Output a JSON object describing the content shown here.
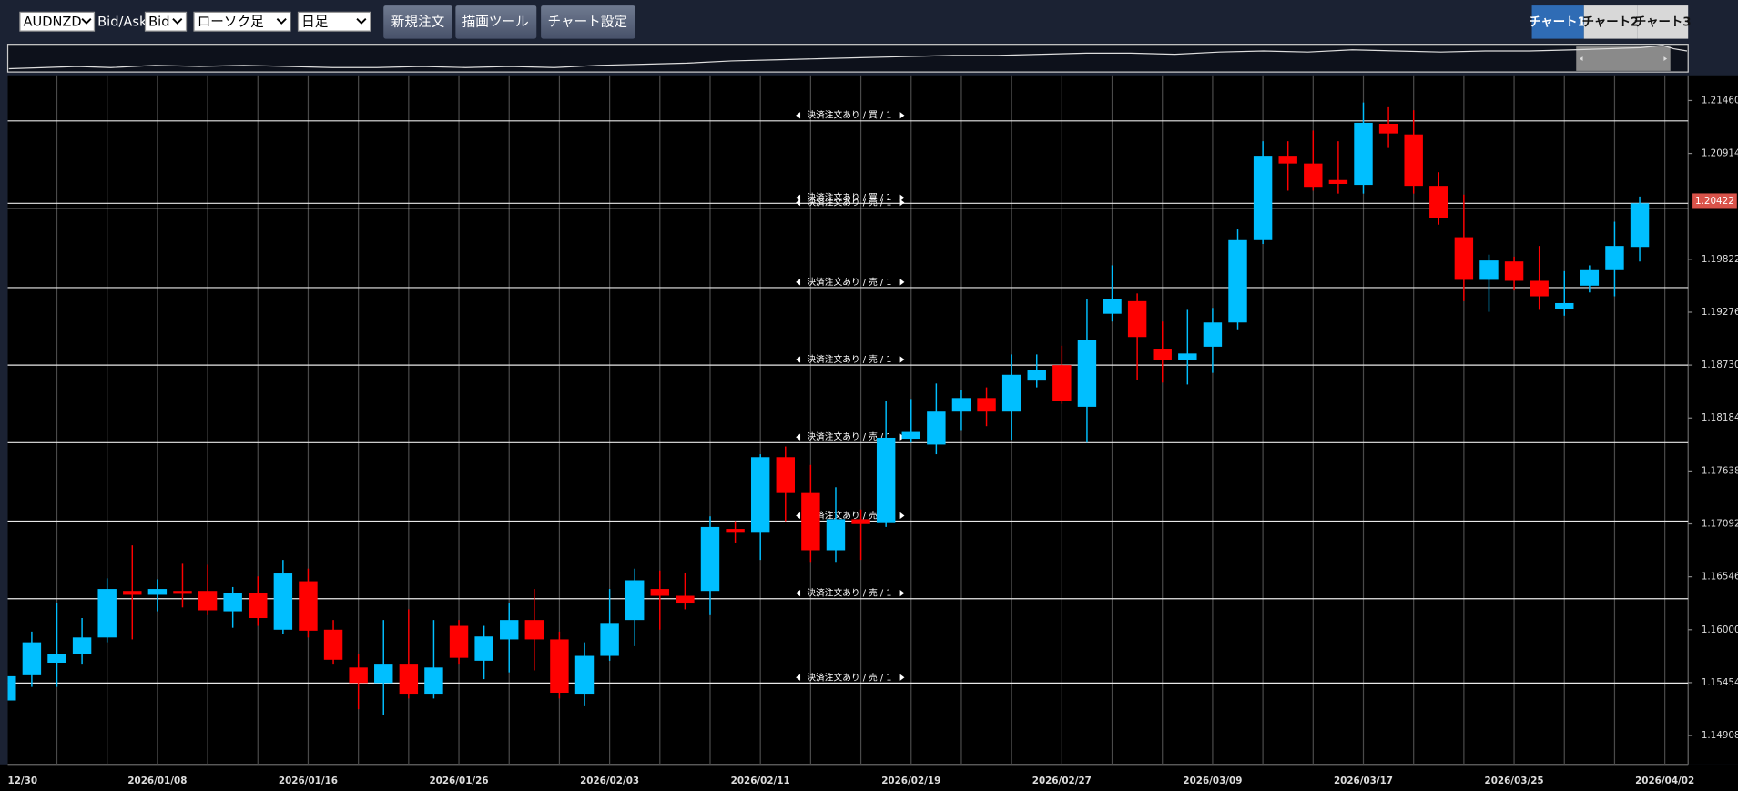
{
  "toolbar": {
    "symbol": "AUDNZD",
    "price_type_label": "Bid/Ask",
    "price_type": "Bid",
    "chart_type": "ローソク足",
    "timeframe": "日足",
    "buttons": [
      "新規注文",
      "描画ツール",
      "チャート設定"
    ],
    "tabs": [
      "チャート1",
      "チャート2",
      "チャート3"
    ]
  },
  "chart_data": {
    "type": "candlestick",
    "categories": [
      "12/30",
      null,
      null,
      null,
      null,
      null,
      "2026/01/08",
      null,
      null,
      null,
      null,
      null,
      "2026/01/16",
      null,
      null,
      null,
      null,
      null,
      "2026/01/26",
      null,
      null,
      null,
      null,
      null,
      "2026/02/03",
      null,
      null,
      null,
      null,
      null,
      "2026/02/11",
      null,
      null,
      null,
      null,
      null,
      "2026/02/19",
      null,
      null,
      null,
      null,
      null,
      "2026/02/27",
      null,
      null,
      null,
      null,
      null,
      "2026/03/09",
      null,
      null,
      null,
      null,
      null,
      "2026/03/17",
      null,
      null,
      null,
      null,
      null,
      "2026/03/25",
      null,
      null,
      null,
      null,
      null,
      "2026/04/02"
    ],
    "open": [
      1.1527,
      1.1553,
      1.1566,
      1.1575,
      1.1592,
      1.164,
      1.1636,
      1.164,
      1.164,
      1.1619,
      1.1638,
      1.16,
      1.165,
      1.16,
      1.1561,
      1.1545,
      1.1564,
      1.1534,
      1.1604,
      1.1568,
      1.159,
      1.161,
      1.159,
      1.1534,
      1.1573,
      1.161,
      1.1642,
      1.1635,
      1.164,
      1.1704,
      1.17,
      1.1778,
      1.1741,
      1.1682,
      1.1714,
      1.171,
      1.1797,
      1.1791,
      1.1825,
      1.1839,
      1.1825,
      1.1857,
      1.1873,
      1.183,
      1.1926,
      1.1939,
      1.189,
      1.1878,
      1.1892,
      1.1917,
      1.2002,
      1.2089,
      1.2081,
      1.2064,
      1.2059,
      1.2122,
      1.2111,
      1.2058,
      1.2005,
      1.1961,
      1.198,
      1.196,
      1.1931,
      1.1955,
      1.1971,
      1.1995,
      null
    ],
    "high": [
      1.1558,
      1.1598,
      1.1627,
      1.1612,
      1.1653,
      1.1687,
      1.1652,
      1.1668,
      1.1667,
      1.1644,
      1.1655,
      1.1672,
      1.1663,
      1.161,
      1.1575,
      1.161,
      1.1621,
      1.161,
      1.161,
      1.1604,
      1.1627,
      1.1642,
      1.1598,
      1.1587,
      1.1642,
      1.1663,
      1.1661,
      1.1659,
      1.1717,
      1.1712,
      1.1781,
      1.1789,
      1.177,
      1.1747,
      1.1724,
      1.1836,
      1.1838,
      1.1854,
      1.1847,
      1.185,
      1.1884,
      1.1884,
      1.1893,
      1.1941,
      1.1976,
      1.1947,
      1.1918,
      1.193,
      1.1932,
      1.2013,
      1.2104,
      1.2104,
      1.2115,
      1.2104,
      1.2144,
      1.2139,
      1.2136,
      1.2072,
      1.2049,
      1.1987,
      1.1985,
      1.1996,
      1.197,
      1.1976,
      1.2021,
      1.2047,
      null
    ],
    "low": [
      1.1489,
      1.1541,
      1.1541,
      1.1564,
      1.1587,
      1.159,
      1.1619,
      1.1623,
      1.1615,
      1.1602,
      1.1604,
      1.1596,
      1.1592,
      1.1564,
      1.1518,
      1.1512,
      1.1529,
      1.1529,
      1.1564,
      1.1549,
      1.1556,
      1.1558,
      1.1529,
      1.1521,
      1.1568,
      1.1583,
      1.16,
      1.1621,
      1.1615,
      1.169,
      1.1672,
      1.1712,
      1.167,
      1.167,
      1.1672,
      1.1706,
      1.1793,
      1.1781,
      1.1806,
      1.181,
      1.1796,
      1.185,
      1.1833,
      1.1793,
      1.1918,
      1.1858,
      1.1855,
      1.1853,
      1.1865,
      1.191,
      1.1998,
      1.2053,
      1.2053,
      1.205,
      1.205,
      1.2097,
      1.205,
      1.2018,
      1.1939,
      1.1928,
      1.195,
      1.193,
      1.1924,
      1.1948,
      1.1944,
      1.198,
      null
    ],
    "close": [
      1.1552,
      1.1587,
      1.1575,
      1.1592,
      1.1642,
      1.1636,
      1.1642,
      1.1637,
      1.162,
      1.1638,
      1.1612,
      1.1658,
      1.1599,
      1.1569,
      1.1545,
      1.1564,
      1.1534,
      1.1561,
      1.1571,
      1.1593,
      1.161,
      1.159,
      1.1535,
      1.1573,
      1.1607,
      1.1651,
      1.1635,
      1.1627,
      1.1706,
      1.17,
      1.1778,
      1.1741,
      1.1682,
      1.1714,
      1.1709,
      1.1798,
      1.1804,
      1.1825,
      1.1839,
      1.1825,
      1.1863,
      1.1868,
      1.1836,
      1.1899,
      1.1941,
      1.1902,
      1.1878,
      1.1885,
      1.1917,
      1.2002,
      1.2089,
      1.2081,
      1.2057,
      1.206,
      1.2123,
      1.2112,
      1.2058,
      1.2025,
      1.1961,
      1.1981,
      1.196,
      1.1944,
      1.1937,
      1.1971,
      1.1996,
      1.204,
      null
    ],
    "up_color": "#00bfff",
    "down_color": "#ff0000",
    "ylim": [
      1.1461,
      1.2172
    ],
    "yticks": [
      1.14908,
      1.15454,
      {
        "value": 1.16,
        "label": "1.16000"
      },
      1.16546,
      1.17092,
      1.17638,
      1.18184,
      {
        "value": 1.1873,
        "label": "1.18730"
      },
      1.19276,
      1.19822,
      1.20914,
      {
        "value": 1.2146,
        "label": "1.21460"
      }
    ],
    "last_price": 1.20422,
    "orders": [
      {
        "label": "決済注文あり / 買 / 1",
        "value": 1.2125
      },
      {
        "label": "決済注文あり / 買 / 1",
        "value": 1.204
      },
      {
        "label": "決済注文あり / 売 / 1",
        "value": 1.2035
      },
      {
        "label": "決済注文あり / 売 / 1",
        "value": 1.1953
      },
      {
        "label": "決済注文あり / 売 / 1",
        "value": 1.1873
      },
      {
        "label": "決済注文あり / 売 / 1",
        "value": 1.1793
      },
      {
        "label": "決済注文あり / 売 / 1",
        "value": 1.1712
      },
      {
        "label": "決済注文あり / 売 / 1",
        "value": 1.1632
      },
      {
        "label": "決済注文あり / 売 / 1",
        "value": 1.1545
      }
    ]
  }
}
